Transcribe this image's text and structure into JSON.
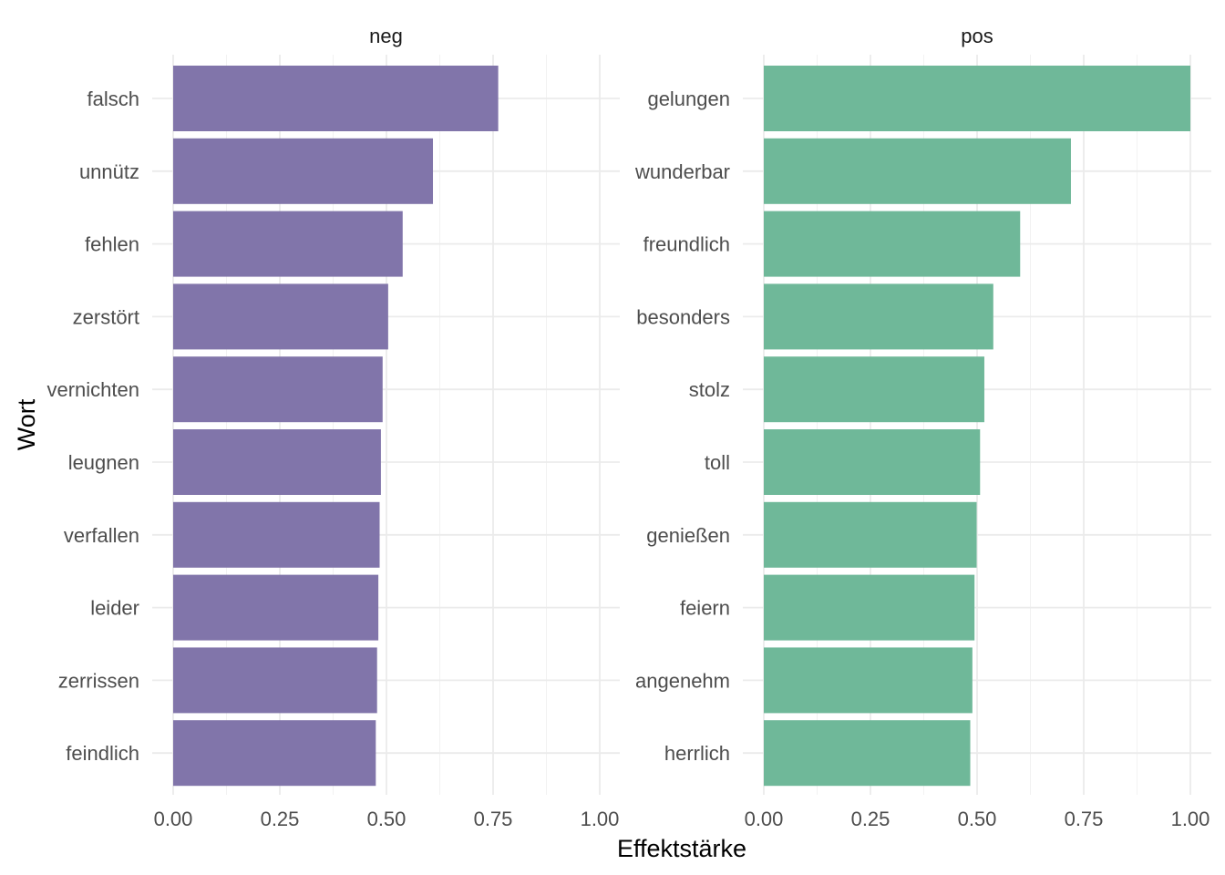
{
  "chart_data": {
    "type": "bar",
    "orientation": "horizontal",
    "xlabel": "Effektstärke",
    "ylabel": "Wort",
    "xlim": [
      0,
      1
    ],
    "xticks": [
      "0.00",
      "0.25",
      "0.50",
      "0.75",
      "1.00"
    ],
    "grid": true,
    "panels": [
      {
        "title": "neg",
        "color": "#8175aa",
        "categories": [
          "falsch",
          "unnütz",
          "fehlen",
          "zerstört",
          "vernichten",
          "leugnen",
          "verfallen",
          "leider",
          "zerrissen",
          "feindlich"
        ],
        "values": [
          0.762,
          0.609,
          0.538,
          0.504,
          0.491,
          0.487,
          0.484,
          0.481,
          0.478,
          0.475
        ]
      },
      {
        "title": "pos",
        "color": "#6fb899",
        "categories": [
          "gelungen",
          "wunderbar",
          "freundlich",
          "besonders",
          "stolz",
          "toll",
          "genießen",
          "feiern",
          "angenehm",
          "herrlich"
        ],
        "values": [
          1.0,
          0.72,
          0.601,
          0.538,
          0.517,
          0.507,
          0.499,
          0.494,
          0.489,
          0.484
        ]
      }
    ]
  }
}
